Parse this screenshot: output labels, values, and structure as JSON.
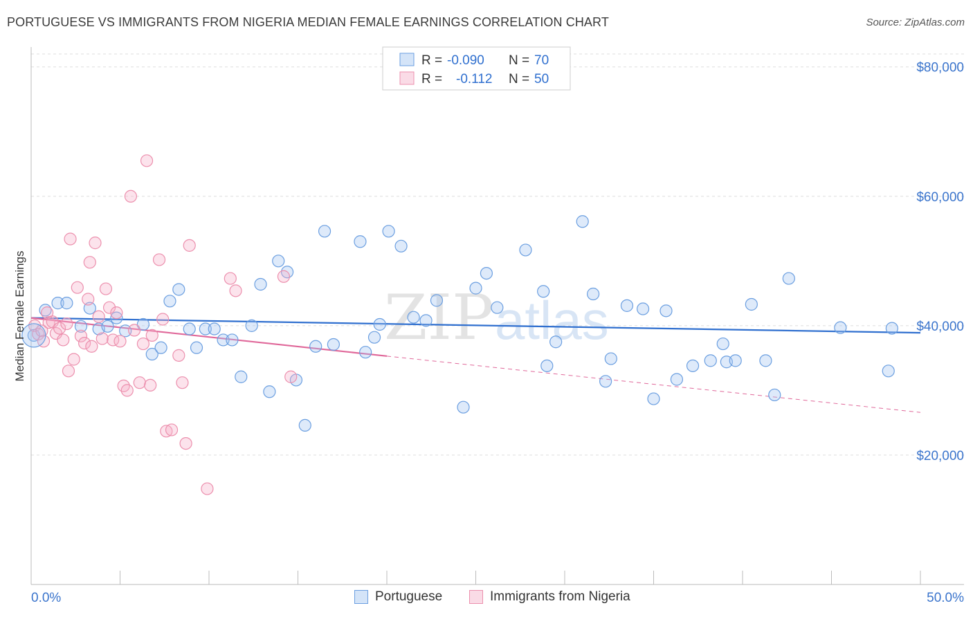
{
  "title": "PORTUGUESE VS IMMIGRANTS FROM NIGERIA MEDIAN FEMALE EARNINGS CORRELATION CHART",
  "source": "Source: ZipAtlas.com",
  "watermark": {
    "zip": "ZIP",
    "atlas": "atlas"
  },
  "legend_top": [
    {
      "r_label": "R =",
      "r_value": "-0.090",
      "n_label": "N =",
      "n_value": "70"
    },
    {
      "r_label": "R =",
      "r_value": "-0.112",
      "n_label": "N =",
      "n_value": "50"
    }
  ],
  "legend_bottom": [
    "Portuguese",
    "Immigrants from Nigeria"
  ],
  "colors": {
    "blue": "#6a9ee0",
    "blue_fill": "rgba(160,195,240,0.35)",
    "blue_line": "#2f6fcf",
    "pink": "#ec8fad",
    "pink_fill": "rgba(245,175,200,0.35)",
    "pink_line": "#e0689a",
    "axis_text": "#3a74cc",
    "grid": "#dddddd"
  },
  "chart_data": {
    "type": "scatter",
    "title": "PORTUGUESE VS IMMIGRANTS FROM NIGERIA MEDIAN FEMALE EARNINGS CORRELATION CHART",
    "xlabel": "",
    "ylabel": "Median Female Earnings",
    "xlim": [
      0,
      50
    ],
    "ylim": [
      0,
      82000
    ],
    "x_tick_labels": [
      "0.0%",
      "50.0%"
    ],
    "y_ticks": [
      20000,
      40000,
      60000,
      80000
    ],
    "y_tick_labels": [
      "$20,000",
      "$40,000",
      "$60,000",
      "$80,000"
    ],
    "grid": true,
    "legend_position": "top-center",
    "series": [
      {
        "name": "Portuguese",
        "r": -0.09,
        "n": 70,
        "trend": {
          "x": [
            0,
            50
          ],
          "y": [
            41200,
            38900
          ]
        },
        "points": [
          [
            0.15,
            38500
          ],
          [
            0.8,
            42400
          ],
          [
            1.5,
            43500
          ],
          [
            2.0,
            43500
          ],
          [
            2.8,
            39900
          ],
          [
            3.3,
            42700
          ],
          [
            3.8,
            39500
          ],
          [
            4.3,
            39900
          ],
          [
            4.8,
            41200
          ],
          [
            5.3,
            39200
          ],
          [
            6.3,
            40200
          ],
          [
            6.8,
            35600
          ],
          [
            7.3,
            36600
          ],
          [
            7.8,
            43800
          ],
          [
            8.3,
            45600
          ],
          [
            8.9,
            39500
          ],
          [
            9.3,
            36600
          ],
          [
            9.8,
            39500
          ],
          [
            10.3,
            39500
          ],
          [
            10.8,
            37800
          ],
          [
            11.3,
            37800
          ],
          [
            11.8,
            32100
          ],
          [
            12.4,
            40000
          ],
          [
            12.9,
            46400
          ],
          [
            13.4,
            29800
          ],
          [
            13.9,
            50000
          ],
          [
            14.4,
            48300
          ],
          [
            14.9,
            31600
          ],
          [
            15.4,
            24600
          ],
          [
            16.0,
            36800
          ],
          [
            16.5,
            54600
          ],
          [
            17.0,
            37100
          ],
          [
            18.5,
            53000
          ],
          [
            18.8,
            35900
          ],
          [
            19.3,
            38200
          ],
          [
            19.6,
            40200
          ],
          [
            20.1,
            54600
          ],
          [
            20.8,
            52300
          ],
          [
            21.5,
            41300
          ],
          [
            22.2,
            40800
          ],
          [
            22.8,
            43900
          ],
          [
            24.3,
            27400
          ],
          [
            25.0,
            45800
          ],
          [
            25.6,
            48100
          ],
          [
            26.2,
            42800
          ],
          [
            27.8,
            51700
          ],
          [
            28.8,
            45300
          ],
          [
            29.0,
            33800
          ],
          [
            29.5,
            37500
          ],
          [
            31.0,
            56100
          ],
          [
            31.6,
            44900
          ],
          [
            32.3,
            31400
          ],
          [
            32.6,
            34900
          ],
          [
            33.5,
            43100
          ],
          [
            34.4,
            42600
          ],
          [
            35.0,
            28700
          ],
          [
            35.7,
            42300
          ],
          [
            36.3,
            31700
          ],
          [
            37.2,
            33800
          ],
          [
            38.2,
            34600
          ],
          [
            38.9,
            37200
          ],
          [
            39.1,
            34400
          ],
          [
            39.6,
            34600
          ],
          [
            40.5,
            43300
          ],
          [
            41.3,
            34600
          ],
          [
            41.8,
            29300
          ],
          [
            42.6,
            47300
          ],
          [
            45.5,
            39700
          ],
          [
            48.2,
            33000
          ],
          [
            48.4,
            39600
          ]
        ]
      },
      {
        "name": "Immigrants from Nigeria",
        "r": -0.112,
        "n": 50,
        "trend": {
          "x": [
            0,
            20
          ],
          "y": [
            41200,
            35300
          ]
        },
        "trend_dashed": {
          "x": [
            20,
            50
          ],
          "y": [
            35300,
            26600
          ]
        },
        "points": [
          [
            0.2,
            40000
          ],
          [
            0.4,
            38700
          ],
          [
            0.6,
            39200
          ],
          [
            0.7,
            37600
          ],
          [
            0.9,
            42000
          ],
          [
            1.0,
            40500
          ],
          [
            1.2,
            40600
          ],
          [
            1.4,
            38800
          ],
          [
            1.6,
            39600
          ],
          [
            1.8,
            37800
          ],
          [
            2.0,
            40300
          ],
          [
            2.1,
            33000
          ],
          [
            2.2,
            53400
          ],
          [
            2.4,
            34800
          ],
          [
            2.6,
            45900
          ],
          [
            2.8,
            38400
          ],
          [
            3.0,
            37300
          ],
          [
            3.2,
            44100
          ],
          [
            3.3,
            49800
          ],
          [
            3.4,
            36800
          ],
          [
            3.6,
            52800
          ],
          [
            3.8,
            41400
          ],
          [
            4.0,
            38000
          ],
          [
            4.2,
            45700
          ],
          [
            4.4,
            42800
          ],
          [
            4.6,
            37800
          ],
          [
            4.8,
            42000
          ],
          [
            5.0,
            37600
          ],
          [
            5.2,
            30700
          ],
          [
            5.4,
            30000
          ],
          [
            5.6,
            60000
          ],
          [
            5.8,
            39300
          ],
          [
            6.1,
            31200
          ],
          [
            6.3,
            37200
          ],
          [
            6.5,
            65500
          ],
          [
            6.7,
            30800
          ],
          [
            6.8,
            38500
          ],
          [
            7.2,
            50200
          ],
          [
            7.4,
            41000
          ],
          [
            7.6,
            23700
          ],
          [
            7.9,
            23900
          ],
          [
            8.3,
            35400
          ],
          [
            8.5,
            31200
          ],
          [
            8.7,
            21800
          ],
          [
            8.9,
            52400
          ],
          [
            9.9,
            14800
          ],
          [
            11.2,
            47300
          ],
          [
            11.5,
            45400
          ],
          [
            14.2,
            47600
          ],
          [
            14.6,
            32100
          ]
        ]
      }
    ]
  }
}
